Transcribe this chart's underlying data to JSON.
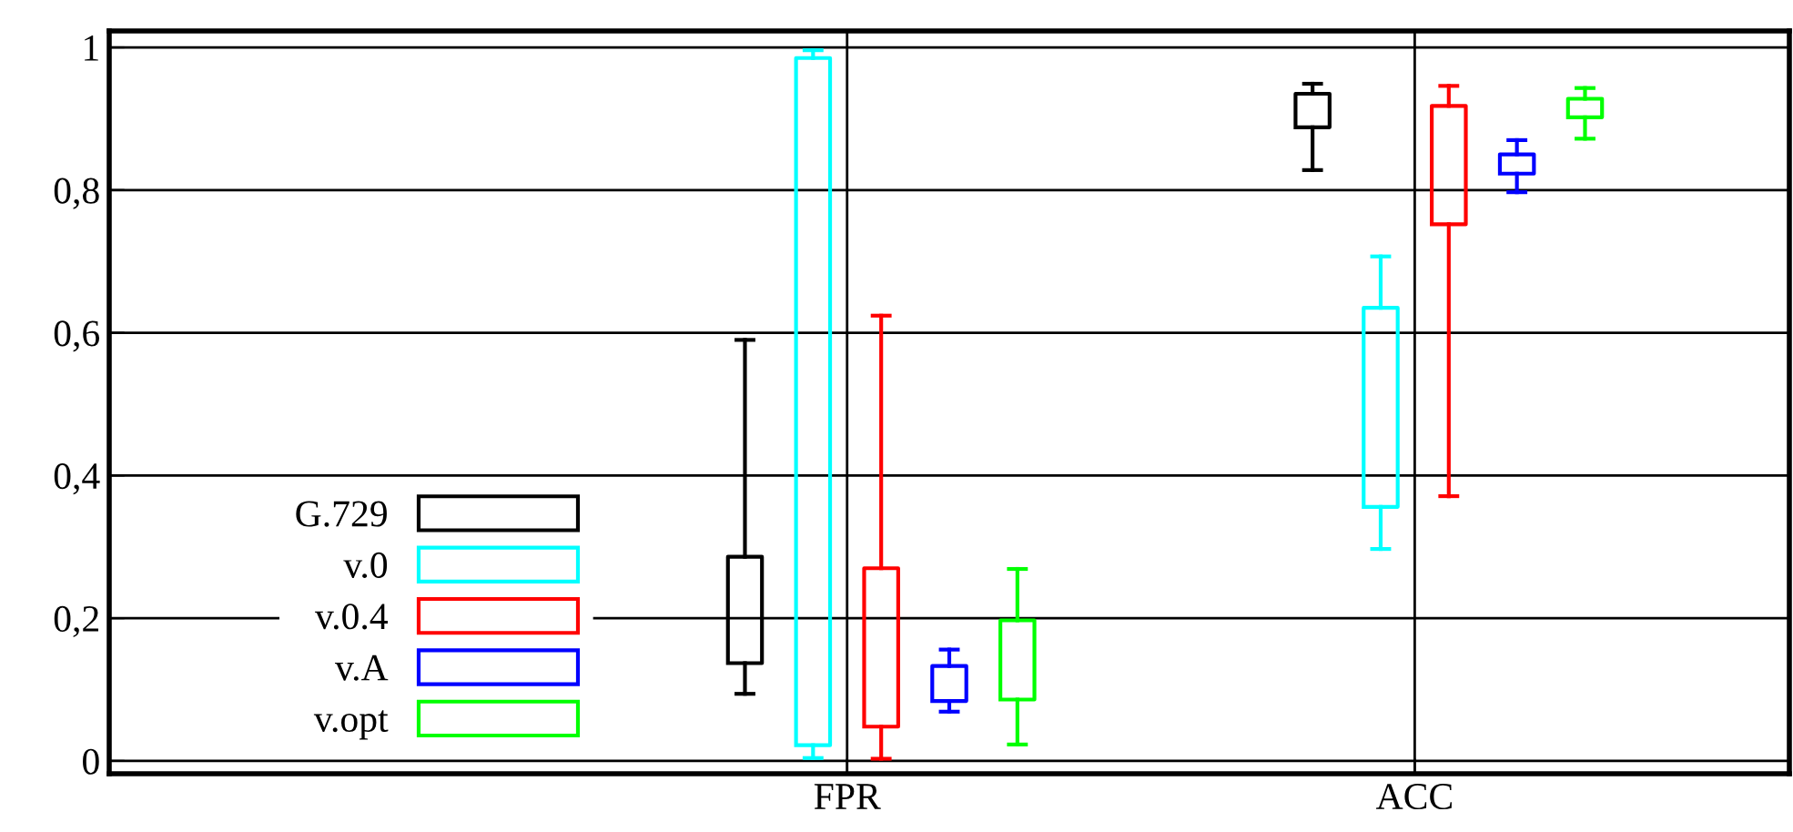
{
  "chart_data": {
    "type": "box",
    "categories": [
      "FPR",
      "ACC"
    ],
    "series": [
      {
        "name": "G.729",
        "color": "#000000",
        "boxes": [
          {
            "low": 0.094,
            "q1": 0.137,
            "q3": 0.286,
            "high": 0.59
          },
          {
            "low": 0.828,
            "q1": 0.888,
            "q3": 0.935,
            "high": 0.949
          }
        ]
      },
      {
        "name": "v.0",
        "color": "#00ffff",
        "boxes": [
          {
            "low": 0.004,
            "q1": 0.022,
            "q3": 0.985,
            "high": 0.996
          },
          {
            "low": 0.297,
            "q1": 0.356,
            "q3": 0.635,
            "high": 0.707
          }
        ]
      },
      {
        "name": "v.0.4",
        "color": "#ff0000",
        "boxes": [
          {
            "low": 0.003,
            "q1": 0.048,
            "q3": 0.27,
            "high": 0.624
          },
          {
            "low": 0.371,
            "q1": 0.752,
            "q3": 0.918,
            "high": 0.946
          }
        ]
      },
      {
        "name": "v.A",
        "color": "#0000ff",
        "boxes": [
          {
            "low": 0.069,
            "q1": 0.084,
            "q3": 0.133,
            "high": 0.156
          },
          {
            "low": 0.797,
            "q1": 0.823,
            "q3": 0.85,
            "high": 0.87
          }
        ]
      },
      {
        "name": "v.opt",
        "color": "#00ff00",
        "boxes": [
          {
            "low": 0.023,
            "q1": 0.086,
            "q3": 0.197,
            "high": 0.269
          },
          {
            "low": 0.872,
            "q1": 0.902,
            "q3": 0.928,
            "high": 0.943
          }
        ]
      }
    ],
    "ylim": [
      -0.018,
      1.023
    ],
    "yticks": [
      0,
      {
        "value": 0.2,
        "label": "0,2"
      },
      {
        "value": 0.4,
        "label": "0,4"
      },
      {
        "value": 0.6,
        "label": "0,6"
      },
      {
        "value": 0.8,
        "label": "0,8"
      },
      1
    ],
    "grid": true,
    "legend": "bottom left"
  }
}
